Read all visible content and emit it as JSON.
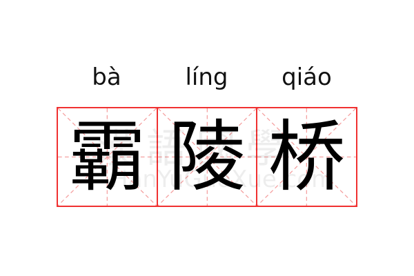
{
  "word": {
    "pinyin": [
      "bà",
      "líng",
      "qiáo"
    ],
    "characters": [
      "霸",
      "陵",
      "桥"
    ]
  },
  "colors": {
    "grid_border": "#f03030",
    "guide_lines": "#f5a0a0"
  },
  "watermark": {
    "chinese": "漢語國學",
    "url": "HanYuGuoXue.com"
  }
}
